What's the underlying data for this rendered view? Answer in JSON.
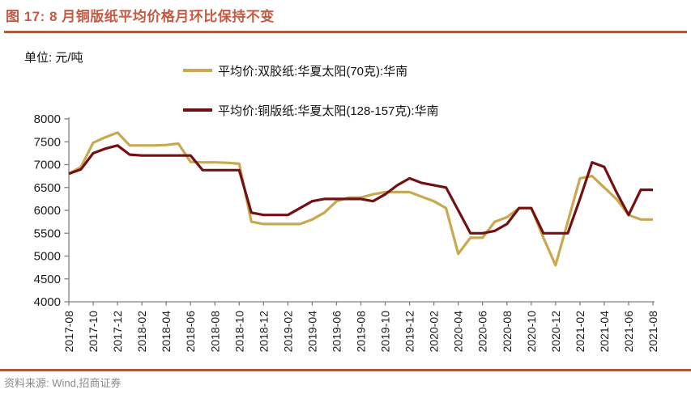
{
  "title": "图 17: 8 月铜版纸平均价格月环比保持不变",
  "unit_label": "单位: 元/吨",
  "legend": [
    {
      "label": "平均价:双胶纸:华夏太阳(70克):华南",
      "color": "#C9A94F"
    },
    {
      "label": "平均价:铜版纸:华夏太阳(128-157克):华南",
      "color": "#721114"
    }
  ],
  "footer": {
    "source_label": "资料来源: Wind,招商证券"
  },
  "colors": {
    "title": "#C55A43",
    "rule": "#AB5B36",
    "axis": "#7F7F7F",
    "tick_text": "#1A1A1A",
    "footer_text": "#8A8A8A",
    "series_gold": "#C9A94F",
    "series_darkred": "#721114"
  },
  "chart_data": {
    "type": "line",
    "title": "图 17: 8 月铜版纸平均价格月环比保持不变",
    "ylabel": "元/吨",
    "xlabel": "",
    "grid": false,
    "legend_position": "top-center",
    "ylim": [
      4000,
      8000
    ],
    "ytick_step": 500,
    "yticks": [
      4000,
      4500,
      5000,
      5500,
      6000,
      6500,
      7000,
      7500,
      8000
    ],
    "x": [
      "2017-08",
      "2017-09",
      "2017-10",
      "2017-11",
      "2017-12",
      "2018-01",
      "2018-02",
      "2018-03",
      "2018-04",
      "2018-05",
      "2018-06",
      "2018-07",
      "2018-08",
      "2018-09",
      "2018-10",
      "2018-11",
      "2018-12",
      "2019-01",
      "2019-02",
      "2019-03",
      "2019-04",
      "2019-05",
      "2019-06",
      "2019-07",
      "2019-08",
      "2019-09",
      "2019-10",
      "2019-11",
      "2019-12",
      "2020-01",
      "2020-02",
      "2020-03",
      "2020-04",
      "2020-05",
      "2020-06",
      "2020-07",
      "2020-08",
      "2020-09",
      "2020-10",
      "2020-11",
      "2020-12",
      "2021-01",
      "2021-02",
      "2021-03",
      "2021-04",
      "2021-05",
      "2021-06",
      "2021-07",
      "2021-08"
    ],
    "xtick_labels": [
      "2017-08",
      "2017-10",
      "2017-12",
      "2018-02",
      "2018-04",
      "2018-06",
      "2018-08",
      "2018-10",
      "2018-12",
      "2019-02",
      "2019-04",
      "2019-06",
      "2019-08",
      "2019-10",
      "2019-12",
      "2020-02",
      "2020-04",
      "2020-06",
      "2020-08",
      "2020-10",
      "2020-12",
      "2021-02",
      "2021-04",
      "2021-06",
      "2021-08"
    ],
    "series": [
      {
        "name": "平均价:双胶纸:华夏太阳(70克):华南",
        "color": "#C9A94F",
        "values": [
          6800,
          6950,
          7480,
          7600,
          7700,
          7420,
          7420,
          7420,
          7430,
          7460,
          7060,
          7050,
          7050,
          7040,
          7020,
          5750,
          5700,
          5700,
          5700,
          5700,
          5800,
          5950,
          6200,
          6280,
          6280,
          6350,
          6400,
          6400,
          6400,
          6300,
          6200,
          6050,
          5050,
          5400,
          5400,
          5750,
          5850,
          6050,
          6050,
          5400,
          4800,
          5750,
          6700,
          6750,
          6500,
          6250,
          5900,
          5800,
          5800
        ]
      },
      {
        "name": "平均价:铜版纸:华夏太阳(128-157克):华南",
        "color": "#721114",
        "values": [
          6800,
          6900,
          7250,
          7350,
          7420,
          7220,
          7200,
          7200,
          7200,
          7200,
          7200,
          6880,
          6880,
          6880,
          6880,
          5950,
          5900,
          5900,
          5900,
          6050,
          6200,
          6250,
          6250,
          6250,
          6250,
          6200,
          6350,
          6550,
          6700,
          6600,
          6550,
          6500,
          6000,
          5500,
          5500,
          5550,
          5700,
          6050,
          6050,
          5500,
          5500,
          5500,
          6250,
          7050,
          6950,
          6400,
          5900,
          6450,
          6450
        ]
      }
    ]
  }
}
